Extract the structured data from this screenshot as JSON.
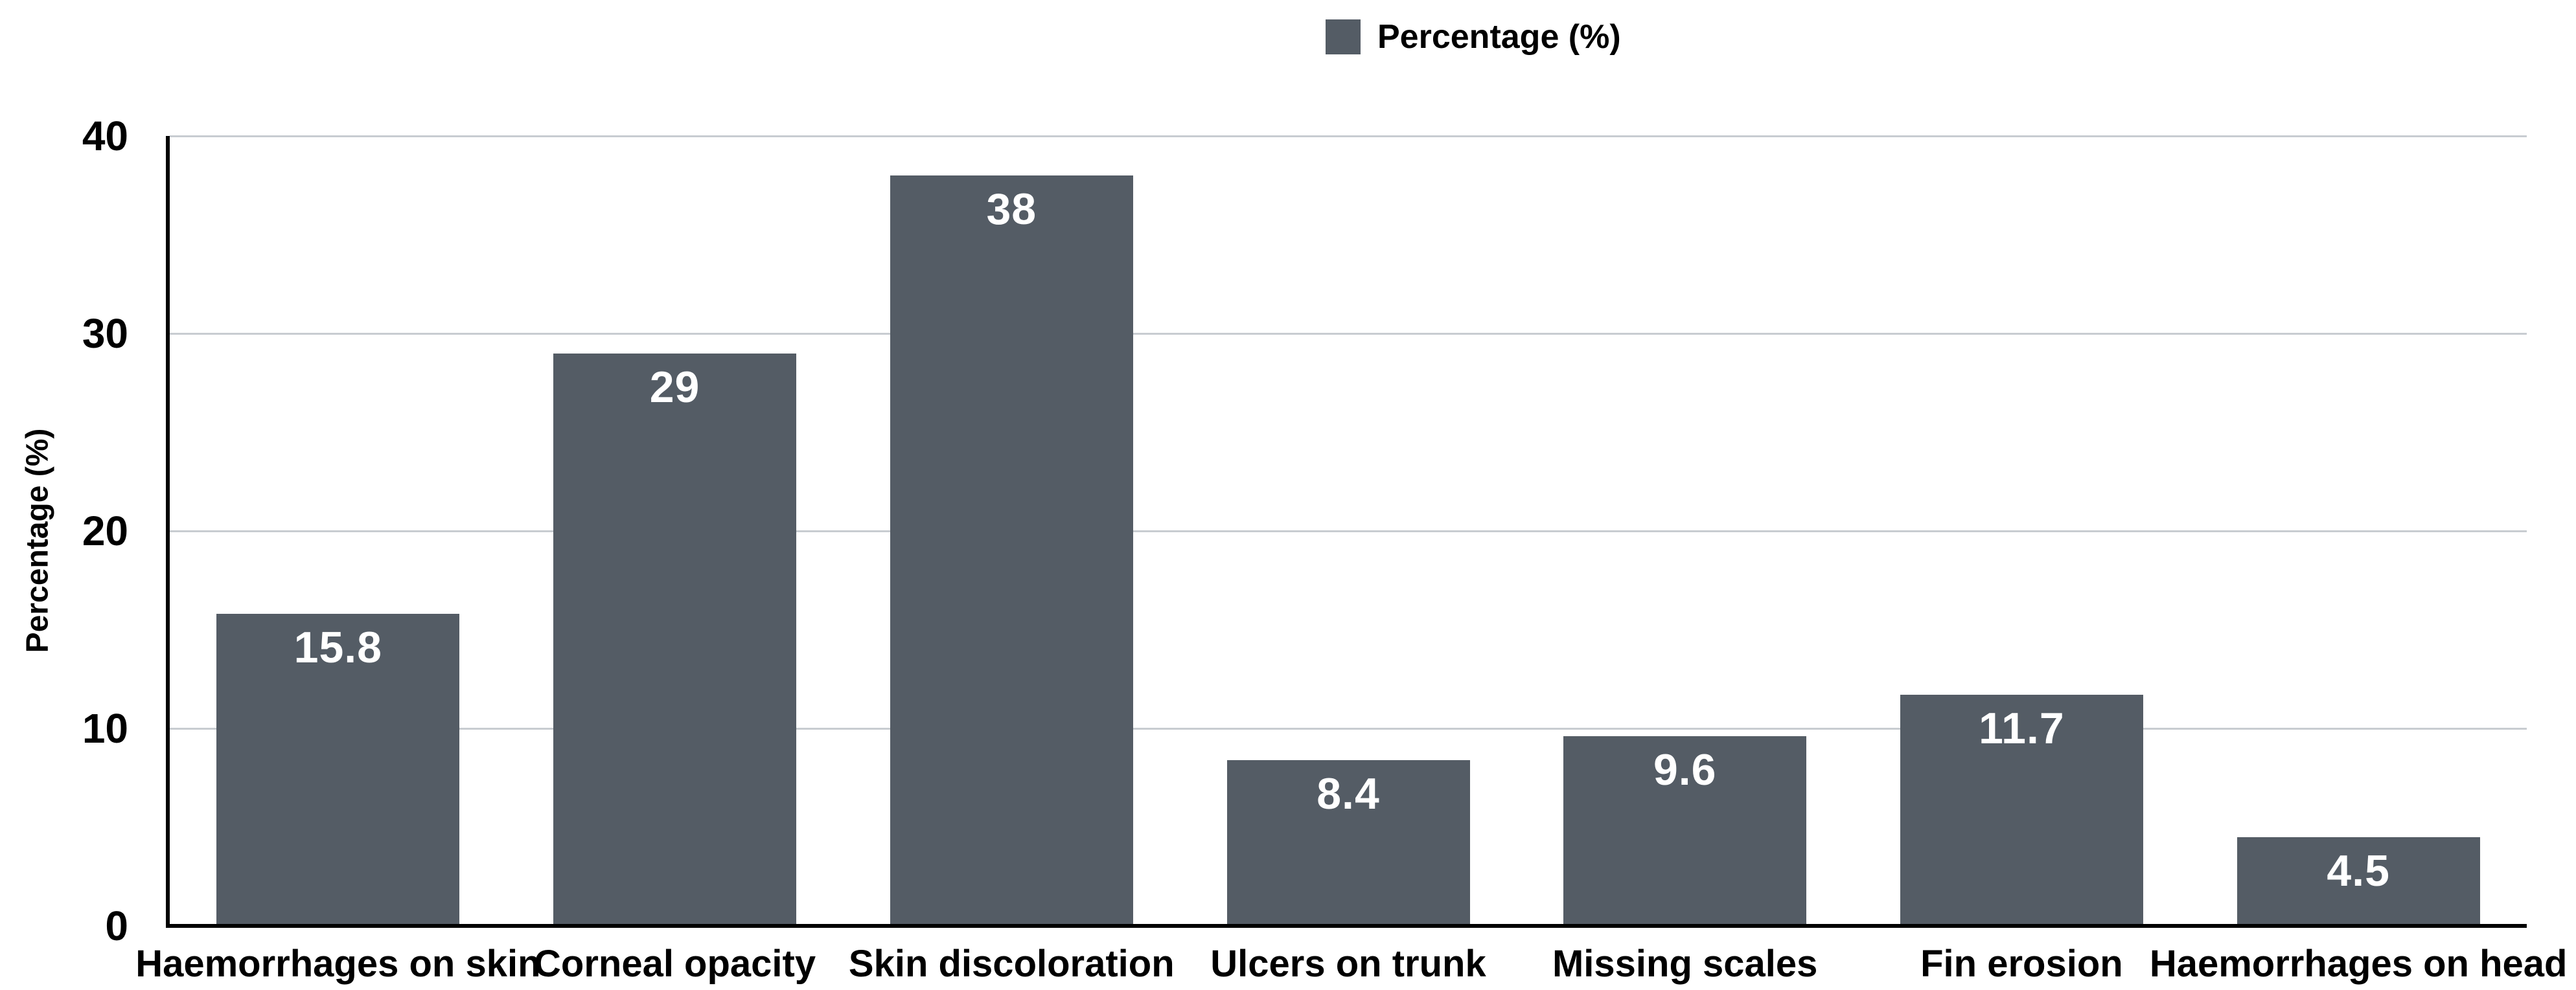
{
  "legend": {
    "label": "Percentage (%)",
    "swatch_color": "#545c65"
  },
  "chart_data": {
    "type": "bar",
    "title": "",
    "categories": [
      "Haemorrhages on skin",
      "Corneal opacity",
      "Skin discoloration",
      "Ulcers on trunk",
      "Missing scales",
      "Fin erosion",
      "Haemorrhages on head"
    ],
    "values": [
      15.8,
      29,
      38,
      8.4,
      9.6,
      11.7,
      4.5
    ],
    "series": [
      {
        "name": "Percentage (%)",
        "values": [
          15.8,
          29,
          38,
          8.4,
          9.6,
          11.7,
          4.5
        ]
      }
    ],
    "xlabel": "",
    "ylabel": "Percentage (%)",
    "ylim": [
      0,
      40
    ],
    "yticks": [
      0,
      10,
      20,
      30,
      40
    ],
    "grid": "horizontal",
    "legend_position": "top-center",
    "bar_color": "#545c65",
    "value_label_color": "#ffffff",
    "gridline_color": "#c8ccd1",
    "axis_color": "#000000"
  }
}
